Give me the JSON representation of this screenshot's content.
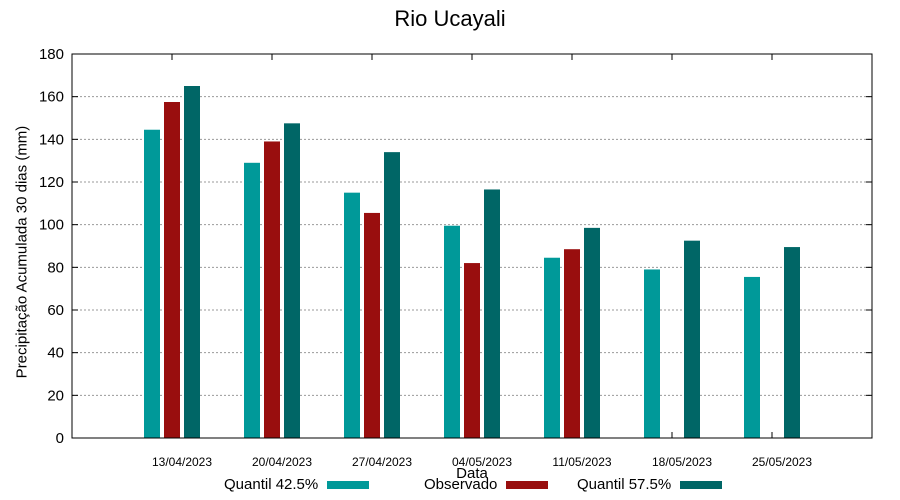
{
  "chart_data": {
    "type": "bar",
    "title": "Rio Ucayali",
    "xlabel": "Data",
    "ylabel": "Precipitação Acumulada 30 dias (mm)",
    "ylim": [
      0,
      180
    ],
    "yticks": [
      0,
      20,
      40,
      60,
      80,
      100,
      120,
      140,
      160,
      180
    ],
    "grid": true,
    "legend_position": "bottom",
    "categories": [
      "13/04/2023",
      "20/04/2023",
      "27/04/2023",
      "04/05/2023",
      "11/05/2023",
      "18/05/2023",
      "25/05/2023"
    ],
    "series": [
      {
        "name": "Quantil 42.5%",
        "color": "#009999",
        "values": [
          144.5,
          129,
          115,
          99.5,
          84.5,
          79,
          75.5
        ]
      },
      {
        "name": "Observado",
        "color": "#990e0e",
        "values": [
          157.5,
          139,
          105.5,
          82,
          88.5,
          null,
          null
        ]
      },
      {
        "name": "Quantil 57.5%",
        "color": "#006666",
        "values": [
          165,
          147.5,
          134,
          116.5,
          98.5,
          92.5,
          89.5
        ]
      }
    ]
  }
}
